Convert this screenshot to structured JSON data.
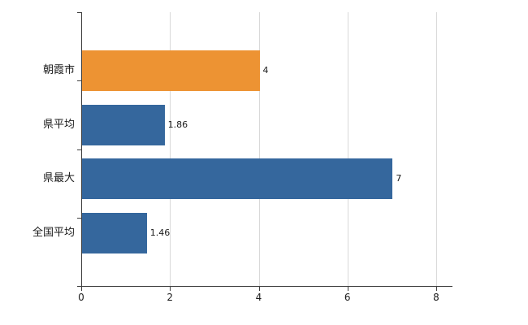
{
  "chart_data": {
    "type": "bar",
    "orientation": "horizontal",
    "title": "",
    "xlabel": "",
    "ylabel": "",
    "categories": [
      "朝霞市",
      "県平均",
      "県最大",
      "全国平均"
    ],
    "values": [
      4,
      1.86,
      7,
      1.46
    ],
    "value_labels": [
      "4",
      "1.86",
      "7",
      "1.46"
    ],
    "bar_colors": [
      "#ED9333",
      "#35679D",
      "#35679D",
      "#35679D"
    ],
    "xlim": [
      0,
      8
    ],
    "x_ticks": [
      0,
      2,
      4,
      6,
      8
    ],
    "x_tick_labels": [
      "0",
      "2",
      "4",
      "6",
      "8"
    ],
    "grid": true,
    "legend": false,
    "gridline_color": "#d9d9d9",
    "axis_color": "#404040",
    "background_color": "#ffffff"
  }
}
